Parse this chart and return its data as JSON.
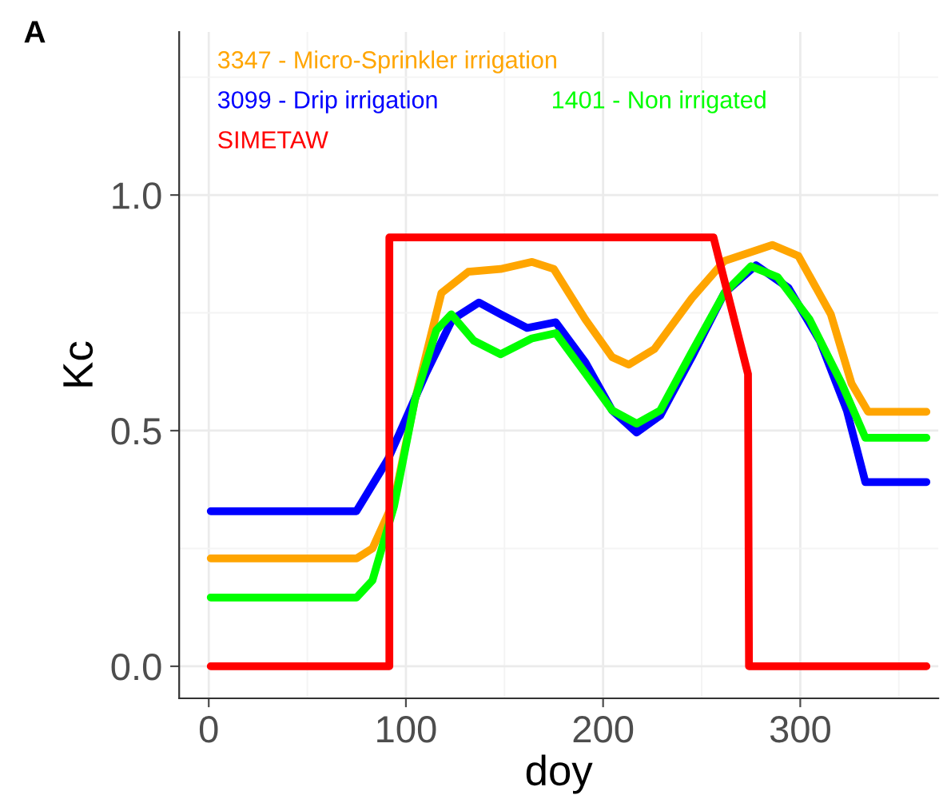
{
  "chart_data": {
    "type": "line",
    "title": "A",
    "xlabel": "doy",
    "ylabel": "Kc",
    "xlim": [
      -15,
      370
    ],
    "ylim": [
      -0.068,
      1.346
    ],
    "xticks": [
      0,
      100,
      200,
      300
    ],
    "yticks": [
      {
        "value": 0,
        "label": "0.0"
      },
      {
        "value": 0.5,
        "label": "0.5"
      },
      {
        "value": 1,
        "label": "1.0"
      }
    ],
    "grid": true,
    "legend": "top left",
    "line_style": "solid",
    "marker": "none",
    "series": [
      {
        "name": "3347 - Micro-Sprinkler irrigation",
        "color": "#ffa500",
        "x": [
          1,
          75,
          83,
          94,
          104.6,
          118,
          131.6,
          148,
          164,
          175,
          191,
          204.6,
          213,
          226,
          245,
          261.5,
          285.8,
          299,
          315.5,
          326,
          334.4,
          364
        ],
        "values": [
          0.229,
          0.229,
          0.25,
          0.351,
          0.566,
          0.792,
          0.837,
          0.843,
          0.858,
          0.843,
          0.736,
          0.656,
          0.64,
          0.673,
          0.781,
          0.86,
          0.894,
          0.871,
          0.747,
          0.6,
          0.54,
          0.54
        ]
      },
      {
        "name": "3099 - Drip irrigation",
        "color": "#0000ff",
        "x": [
          1,
          74.9,
          91,
          110,
          123.5,
          137,
          148,
          161.4,
          176,
          191,
          204.6,
          217,
          229,
          245,
          261.5,
          277.6,
          294,
          310,
          323.6,
          333,
          364
        ],
        "values": [
          0.329,
          0.329,
          0.44,
          0.62,
          0.736,
          0.772,
          0.747,
          0.718,
          0.73,
          0.645,
          0.543,
          0.496,
          0.532,
          0.656,
          0.792,
          0.851,
          0.803,
          0.69,
          0.543,
          0.391,
          0.391
        ]
      },
      {
        "name": "1401 - Non irrigated",
        "color": "#00ff00",
        "x": [
          1,
          75,
          83,
          94,
          104.6,
          115.4,
          123,
          134.4,
          148,
          164,
          176,
          191,
          204.6,
          217,
          229,
          245,
          261.5,
          275,
          288.5,
          304.7,
          321,
          333,
          364
        ],
        "values": [
          0.146,
          0.146,
          0.182,
          0.34,
          0.566,
          0.713,
          0.747,
          0.691,
          0.662,
          0.696,
          0.707,
          0.622,
          0.543,
          0.515,
          0.543,
          0.667,
          0.792,
          0.849,
          0.826,
          0.736,
          0.6,
          0.485,
          0.485
        ]
      },
      {
        "name": "SIMETAW",
        "color": "#ff0000",
        "x": [
          1,
          91.6,
          91.6,
          256,
          273.5,
          274,
          364
        ],
        "values": [
          0,
          0,
          0.91,
          0.91,
          0.62,
          0,
          0
        ]
      }
    ]
  }
}
